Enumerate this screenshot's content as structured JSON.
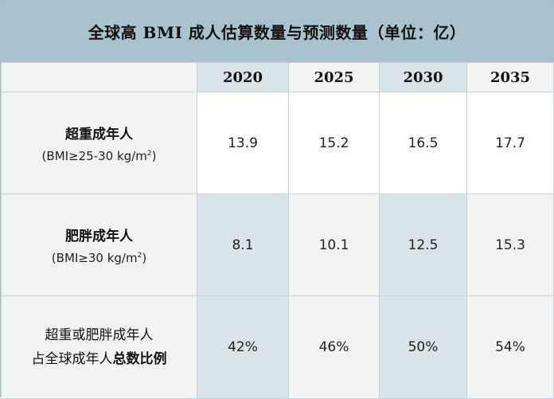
{
  "chart_data": {
    "type": "table",
    "title": "全球高 BMI 成人估算数量与预测数量（单位：亿）",
    "years": [
      "2020",
      "2025",
      "2030",
      "2035"
    ],
    "rows": [
      {
        "label": "超重成年人",
        "sublabel_prefix": "(BMI≥25-30 kg/m",
        "sublabel_sup": "2",
        "sublabel_suffix": ")",
        "values": [
          "13.9",
          "15.2",
          "16.5",
          "17.7"
        ]
      },
      {
        "label": "肥胖成年人",
        "sublabel_prefix": "(BMI≥30 kg/m",
        "sublabel_sup": "2",
        "sublabel_suffix": ")",
        "values": [
          "8.1",
          "10.1",
          "12.5",
          "15.3"
        ]
      },
      {
        "label_line1": "超重或肥胖成年人",
        "label_line2_plain": "占全球成年人",
        "label_line2_bold": "总数比例",
        "values": [
          "42%",
          "46%",
          "50%",
          "54%"
        ]
      }
    ]
  },
  "colors": {
    "title_bg": "#a8c3cd",
    "header_grey": "#f2f2f2",
    "cell_blue": "#d9e4e9"
  }
}
